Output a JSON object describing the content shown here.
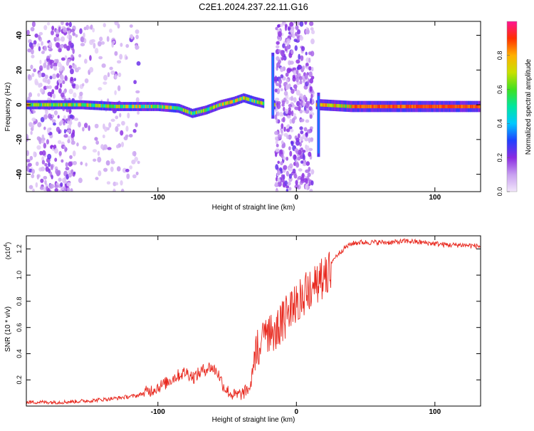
{
  "title": "C2E1.2024.237.22.11.G16",
  "chart_data": [
    {
      "type": "heatmap",
      "xlabel": "Height of straight line (km)",
      "ylabel": "Frequency (Hz)",
      "xlim": [
        -195,
        133
      ],
      "ylim": [
        -50,
        48
      ],
      "x_ticks": [
        -100,
        0,
        100
      ],
      "y_ticks": [
        -40,
        -20,
        0,
        20,
        40
      ],
      "colorbar": {
        "label": "Normalized spectral amplitude",
        "range": [
          0,
          1
        ],
        "ticks": [
          "0.0",
          "0.2",
          "0.4",
          "0.6",
          "0.8"
        ],
        "colors": [
          "#f2e6fb",
          "#c8a0f0",
          "#8a2be2",
          "#2040ff",
          "#00c8ff",
          "#00e6a0",
          "#40e020",
          "#c8e000",
          "#ffb000",
          "#ff3000",
          "#ff1493"
        ]
      },
      "trace": [
        {
          "x": -195,
          "y": 0
        },
        {
          "x": -170,
          "y": 0
        },
        {
          "x": -155,
          "y": 0
        },
        {
          "x": -130,
          "y": -1
        },
        {
          "x": -100,
          "y": -1
        },
        {
          "x": -85,
          "y": -2
        },
        {
          "x": -75,
          "y": -5
        },
        {
          "x": -65,
          "y": -3
        },
        {
          "x": -55,
          "y": 0
        },
        {
          "x": -45,
          "y": 2
        },
        {
          "x": -38,
          "y": 4
        },
        {
          "x": -30,
          "y": 2
        },
        {
          "x": -20,
          "y": 0
        },
        {
          "x": 17,
          "y": 0
        },
        {
          "x": 40,
          "y": -1
        },
        {
          "x": 80,
          "y": -1
        },
        {
          "x": 133,
          "y": -1
        }
      ]
    },
    {
      "type": "line",
      "xlabel": "Height of straight line (km)",
      "ylabel": "SNR (10 * v/v)",
      "multiplier_label": "(x10",
      "multiplier_exp": "4",
      "multiplier_close": ")",
      "xlim": [
        -195,
        133
      ],
      "ylim": [
        0,
        1.3
      ],
      "x_ticks": [
        -100,
        0,
        100
      ],
      "y_ticks": [
        "0.2",
        "0.4",
        "0.6",
        "0.8",
        "1.0",
        "1.2"
      ],
      "color": "#e8281e",
      "series": [
        {
          "x": [
            -195,
            -170,
            -150,
            -130,
            -115,
            -105,
            -95,
            -88,
            -80,
            -74,
            -68,
            -62,
            -57,
            -52,
            -47,
            -43,
            -38,
            -33,
            -29,
            -25,
            -20,
            -15,
            -10,
            -5,
            0,
            5,
            10,
            15,
            20,
            25,
            30,
            35,
            40,
            45,
            50,
            60,
            70,
            80,
            90,
            100,
            110,
            120,
            133
          ],
          "y": [
            0.03,
            0.03,
            0.04,
            0.06,
            0.08,
            0.12,
            0.17,
            0.22,
            0.26,
            0.22,
            0.27,
            0.3,
            0.26,
            0.14,
            0.09,
            0.08,
            0.1,
            0.15,
            0.5,
            0.56,
            0.62,
            0.66,
            0.71,
            0.78,
            0.86,
            0.92,
            0.97,
            1.01,
            1.05,
            1.1,
            1.16,
            1.21,
            1.24,
            1.25,
            1.25,
            1.25,
            1.25,
            1.26,
            1.25,
            1.24,
            1.23,
            1.23,
            1.22
          ]
        }
      ]
    }
  ]
}
